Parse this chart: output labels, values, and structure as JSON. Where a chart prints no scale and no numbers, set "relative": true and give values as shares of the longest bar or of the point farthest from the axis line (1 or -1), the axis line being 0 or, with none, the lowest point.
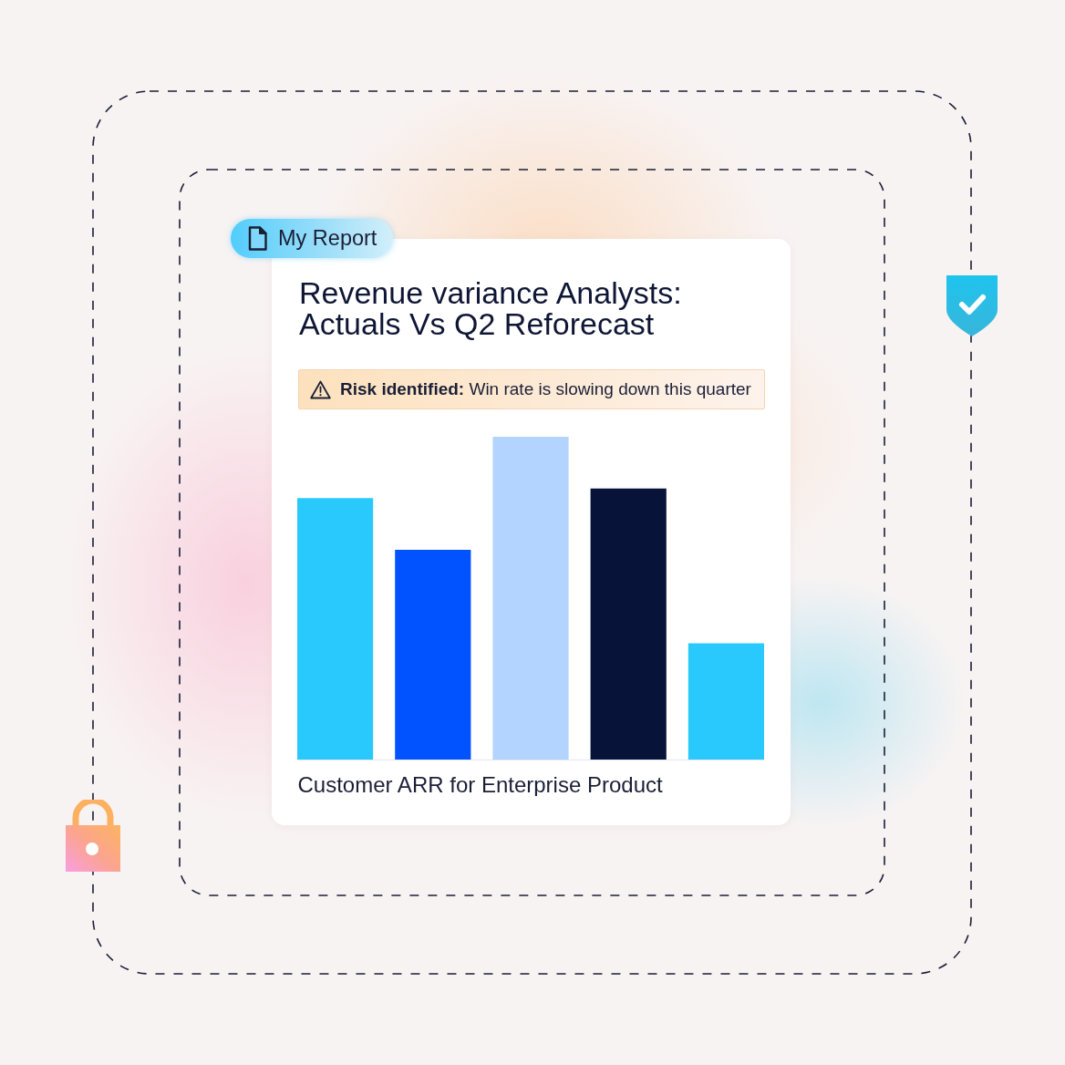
{
  "chart_data": {
    "type": "bar",
    "title": "Revenue variance Analysts: Actuals Vs Q2 Reforecast",
    "xlabel": "Customer ARR for Enterprise Product",
    "annotations": [
      "My Report",
      "Risk identified: Win rate is slowing down this quarter"
    ],
    "categories": [
      null,
      null,
      null,
      null,
      null
    ],
    "values": [
      0.81,
      0.65,
      1,
      0.84,
      0.36
    ],
    "colors": [
      "#29c9fd",
      "#0053ff",
      "#b3d4fe",
      "#08133a",
      "#29c9fd"
    ],
    "relative": true
  }
}
